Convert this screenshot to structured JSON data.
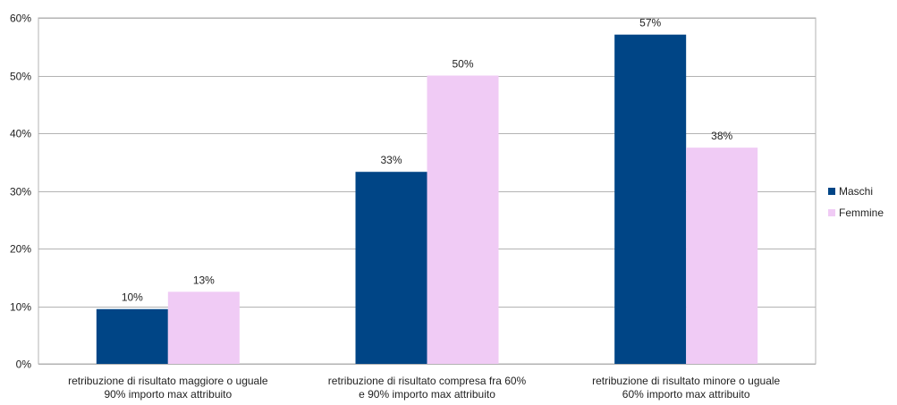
{
  "chart_data": {
    "type": "bar",
    "categories": [
      [
        "retribuzione di risultato maggiore o uguale",
        "90% importo max attribuito"
      ],
      [
        "retribuzione di risultato compresa fra 60%",
        "e 90% importo max attribuito"
      ],
      [
        "retribuzione di risultato minore o uguale",
        "60% importo max attribuito"
      ]
    ],
    "series": [
      {
        "name": "Maschi",
        "color": "#004586",
        "values": [
          9.5,
          33.3,
          57.1
        ],
        "labels": [
          "10%",
          "33%",
          "57%"
        ]
      },
      {
        "name": "Femmine",
        "color": "#f0cbf5",
        "values": [
          12.5,
          50.0,
          37.5
        ],
        "labels": [
          "13%",
          "50%",
          "38%"
        ]
      }
    ],
    "ylim": [
      0,
      60
    ],
    "yticks": [
      0,
      10,
      20,
      30,
      40,
      50,
      60
    ],
    "ytick_labels": [
      "0%",
      "10%",
      "20%",
      "30%",
      "40%",
      "50%",
      "60%"
    ],
    "grid": true,
    "legend_position": "right",
    "title": "",
    "xlabel": "",
    "ylabel": ""
  }
}
